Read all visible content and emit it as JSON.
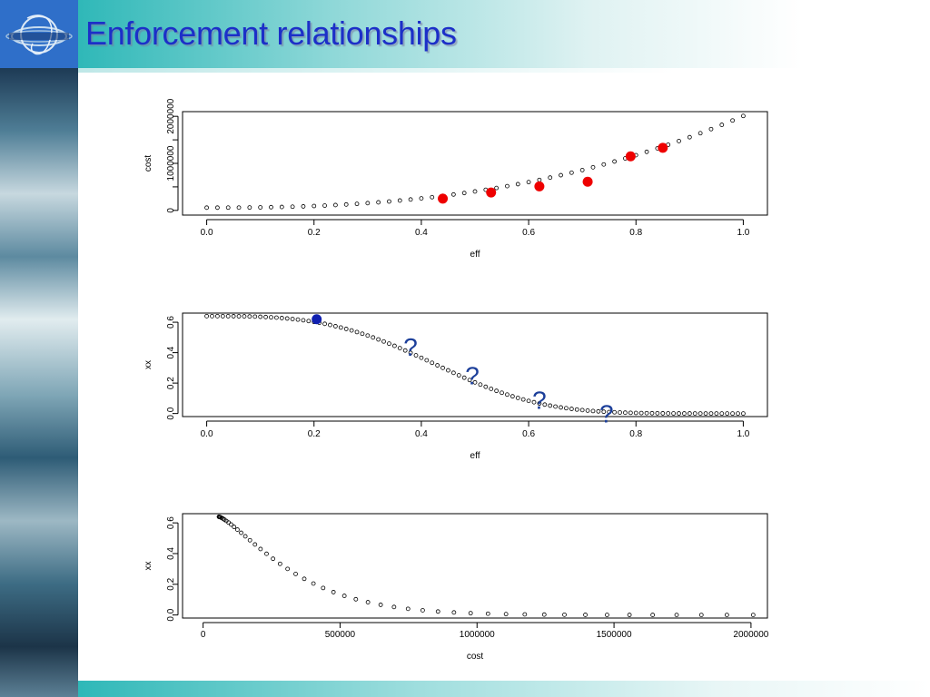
{
  "slide": {
    "title": "Enforcement relationships",
    "colors": {
      "title": "#1c2fc8",
      "header_teal": "#2fb8b8",
      "logo_blue": "#2f6fc9",
      "highlight_red": "#ee0000",
      "highlight_blue": "#1020b0",
      "question_mark": "#1c3f9a"
    },
    "icons": [
      "globe-logo-icon",
      "ocean-image"
    ]
  },
  "chart_data": [
    {
      "type": "scatter",
      "xlabel": "eff",
      "ylabel": "cost",
      "xlim": [
        0,
        1
      ],
      "ylim": [
        0,
        2000000
      ],
      "xticks": [
        "0.0",
        "0.2",
        "0.4",
        "0.6",
        "0.8",
        "1.0"
      ],
      "yticks": [
        "0",
        "1000000",
        "2000000"
      ],
      "curve": {
        "x_start": 0,
        "x_end": 1,
        "n": 51,
        "formula": "cost = 58000 + 1950000 * eff^2.5"
      },
      "highlighted_points": {
        "color": "red",
        "x": [
          0.44,
          0.53,
          0.62,
          0.71,
          0.79,
          0.85
        ],
        "y": [
          250000,
          380000,
          510000,
          610000,
          1150000,
          1330000
        ]
      }
    },
    {
      "type": "scatter",
      "xlabel": "eff",
      "ylabel": "xx",
      "xlim": [
        0,
        1
      ],
      "ylim": [
        0,
        0.65
      ],
      "xticks": [
        "0.0",
        "0.2",
        "0.4",
        "0.6",
        "0.8",
        "1.0"
      ],
      "yticks": [
        "0.0",
        "0.2",
        "0.4",
        "0.6"
      ],
      "curve": {
        "x_start": 0,
        "x_end": 1,
        "n": 101,
        "formula": "xx = 0.64 * exp(-(eff/0.48)^3.2)"
      },
      "highlighted_points": {
        "color": "blue",
        "x": [
          0.205
        ],
        "y": [
          0.62
        ]
      },
      "annotations": [
        {
          "text": "?",
          "x": 0.38,
          "y": 0.44
        },
        {
          "text": "?",
          "x": 0.495,
          "y": 0.25
        },
        {
          "text": "?",
          "x": 0.62,
          "y": 0.09
        },
        {
          "text": "?",
          "x": 0.745,
          "y": 0.0
        }
      ]
    },
    {
      "type": "scatter",
      "xlabel": "cost",
      "ylabel": "xx",
      "xlim": [
        0,
        2050000
      ],
      "ylim": [
        0,
        0.65
      ],
      "xticks": [
        "0",
        "500000",
        "1000000",
        "1500000",
        "2000000"
      ],
      "yticks": [
        "0.0",
        "0.2",
        "0.4",
        "0.6"
      ],
      "curve": {
        "formula": "parametric over eff in [0,1]: x = cost(eff), y = xx(eff)",
        "n": 51
      }
    }
  ]
}
